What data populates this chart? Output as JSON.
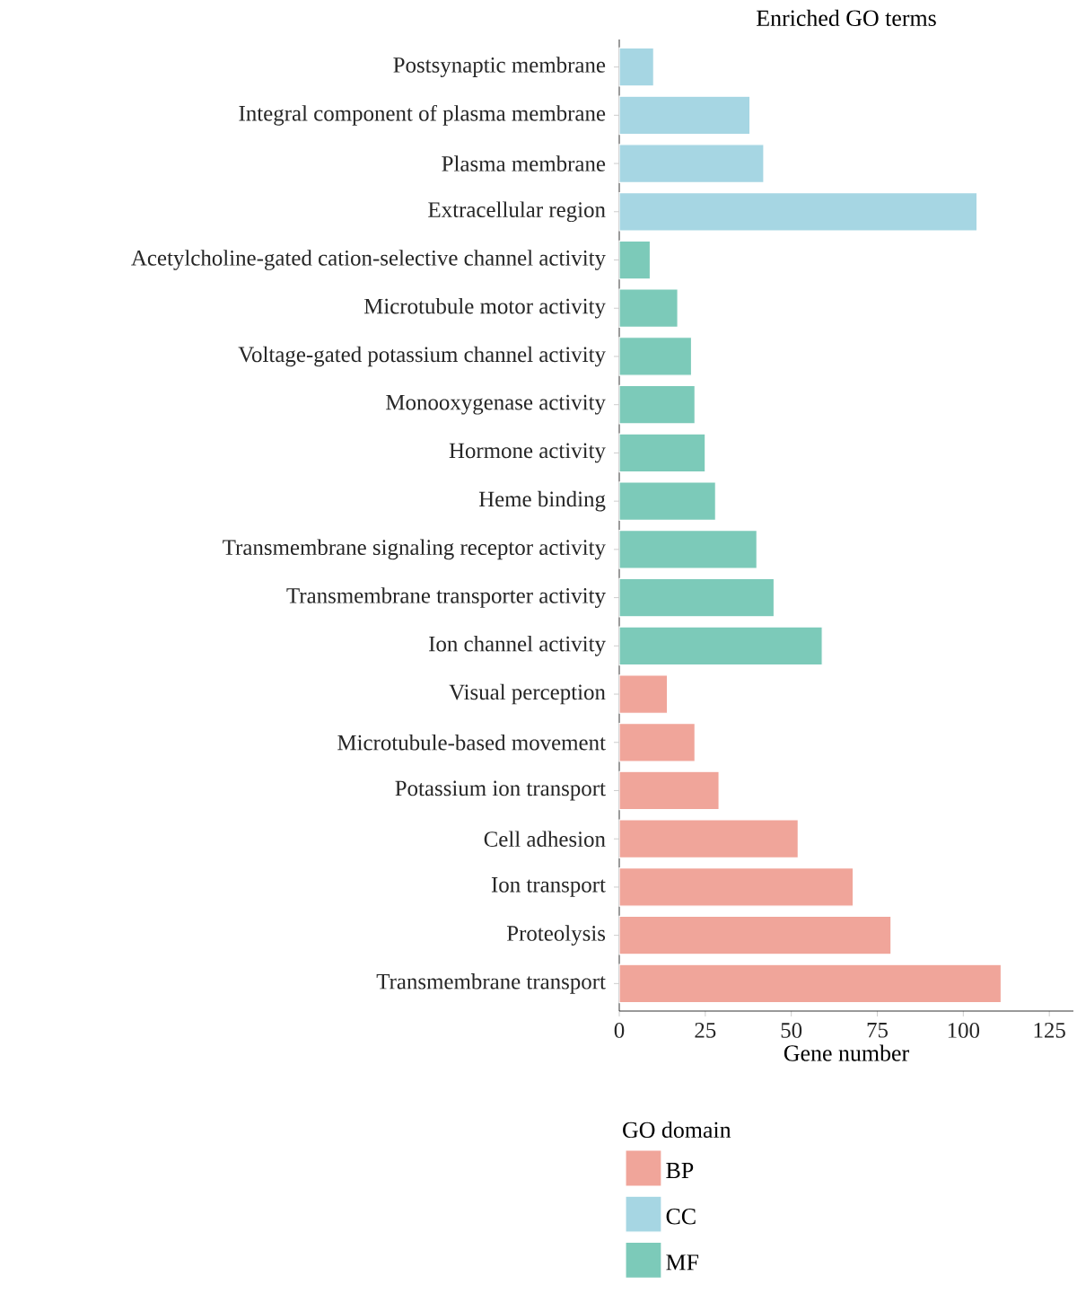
{
  "chart_data": {
    "type": "bar",
    "orientation": "horizontal",
    "title": "Enriched GO terms",
    "xlabel": "Gene number",
    "legend_title": "GO domain",
    "legend": "bottom",
    "categories": [
      "Postsynaptic membrane",
      "Integral component of plasma membrane",
      "Plasma membrane",
      "Extracellular region",
      "Acetylcholine-gated cation-selective channel activity",
      "Microtubule motor activity",
      "Voltage-gated potassium channel activity",
      "Monooxygenase activity",
      "Hormone activity",
      "Heme binding",
      "Transmembrane signaling receptor activity",
      "Transmembrane transporter activity",
      "Ion channel activity",
      "Visual perception",
      "Microtubule-based movement",
      "Potassium ion transport",
      "Cell adhesion",
      "Ion transport",
      "Proteolysis",
      "Transmembrane transport"
    ],
    "series": [
      {
        "name": "BP",
        "color": "#f0a59a",
        "values": [
          null,
          null,
          null,
          null,
          null,
          null,
          null,
          null,
          null,
          null,
          null,
          null,
          null,
          14,
          22,
          29,
          52,
          68,
          79,
          111
        ]
      },
      {
        "name": "CC",
        "color": "#a6d6e3",
        "values": [
          10,
          38,
          42,
          104,
          null,
          null,
          null,
          null,
          null,
          null,
          null,
          null,
          null,
          null,
          null,
          null,
          null,
          null,
          null,
          null
        ]
      },
      {
        "name": "MF",
        "color": "#7ccab9",
        "values": [
          null,
          null,
          null,
          null,
          9,
          17,
          21,
          22,
          25,
          28,
          40,
          45,
          59,
          null,
          null,
          null,
          null,
          null,
          null,
          null
        ]
      }
    ],
    "xlim": [
      0,
      132
    ],
    "xticks": [
      0,
      25,
      50,
      75,
      100,
      125
    ]
  }
}
